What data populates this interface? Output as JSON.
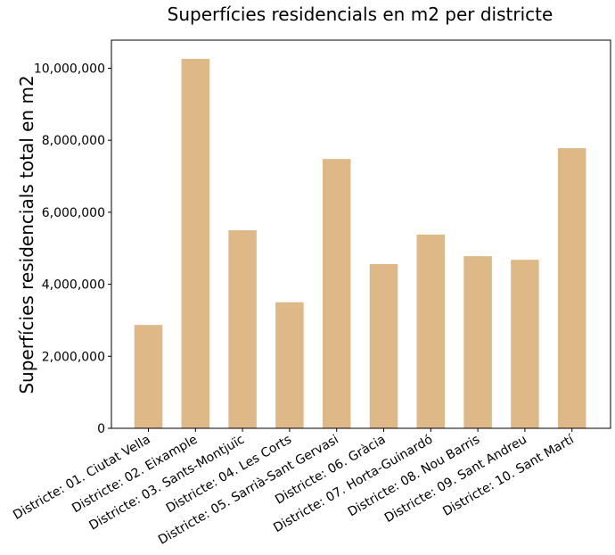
{
  "chart_data": {
    "type": "bar",
    "title": "Superfícies residencials en m2 per districte",
    "xlabel": "",
    "ylabel": "Superfícies residencials total en m2",
    "categories": [
      "Districte: 01. Ciutat Vella",
      "Districte: 02. Eixample",
      "Districte: 03. Sants-Montjuïc",
      "Districte: 04. Les Corts",
      "Districte: 05. Sarrià-Sant Gervasi",
      "Districte: 06. Gràcia",
      "Districte: 07. Horta-Guinardó",
      "Districte: 08. Nou Barris",
      "Districte: 09. Sant Andreu",
      "Districte: 10. Sant Martí"
    ],
    "values": [
      2870000,
      10260000,
      5500000,
      3500000,
      7480000,
      4560000,
      5380000,
      4780000,
      4680000,
      7780000
    ],
    "ylim": [
      0,
      10780000
    ],
    "yticks": [
      0,
      2000000,
      4000000,
      6000000,
      8000000,
      10000000
    ],
    "ytick_labels": [
      "0",
      "2,000,000",
      "4,000,000",
      "6,000,000",
      "8,000,000",
      "10,000,000"
    ],
    "bar_color": "#deb887",
    "grid": false,
    "legend": "none"
  }
}
